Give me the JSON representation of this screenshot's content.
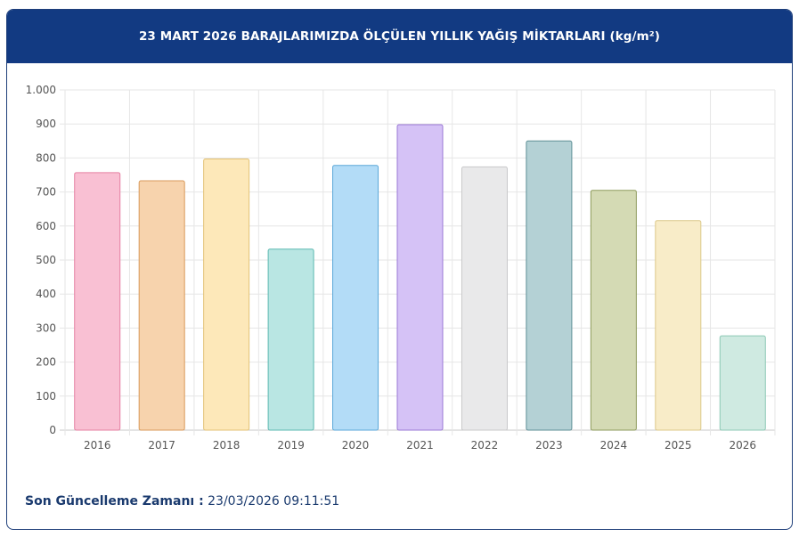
{
  "header": {
    "title": "23 MART 2026 BARAJLARIMIZDA ÖLÇÜLEN YILLIK YAĞIŞ MİKTARLARI (kg/m²)"
  },
  "footer": {
    "label": "Son Güncelleme Zamanı :",
    "value": "23/03/2026 09:11:51"
  },
  "chart_data": {
    "type": "bar",
    "categories": [
      "2016",
      "2017",
      "2018",
      "2019",
      "2020",
      "2021",
      "2022",
      "2023",
      "2024",
      "2025",
      "2026"
    ],
    "values": [
      757,
      733,
      797,
      532,
      778,
      898,
      774,
      850,
      705,
      616,
      277
    ],
    "ylim": [
      0,
      1000
    ],
    "yticks": [
      0,
      100,
      200,
      300,
      400,
      500,
      600,
      700,
      800,
      900,
      1000
    ],
    "ytick_labels": [
      "0",
      "100",
      "200",
      "300",
      "400",
      "500",
      "600",
      "700",
      "800",
      "900",
      "1.000"
    ],
    "grid": true,
    "bar_colors": [
      {
        "fill": "#f9c0d3",
        "stroke": "#e57fa2"
      },
      {
        "fill": "#f7d3ad",
        "stroke": "#d99a5a"
      },
      {
        "fill": "#fde8b9",
        "stroke": "#e3c275"
      },
      {
        "fill": "#b9e6e3",
        "stroke": "#5bb8b0"
      },
      {
        "fill": "#b3dcf7",
        "stroke": "#5aa7d8"
      },
      {
        "fill": "#d5c2f6",
        "stroke": "#9a78d6"
      },
      {
        "fill": "#e9e9ea",
        "stroke": "#c8c8ca"
      },
      {
        "fill": "#b4d1d5",
        "stroke": "#5e8f96"
      },
      {
        "fill": "#d4dab4",
        "stroke": "#8e9b5c"
      },
      {
        "fill": "#f8ecc8",
        "stroke": "#dcc889"
      },
      {
        "fill": "#cfeae1",
        "stroke": "#8cc9b5"
      }
    ]
  }
}
